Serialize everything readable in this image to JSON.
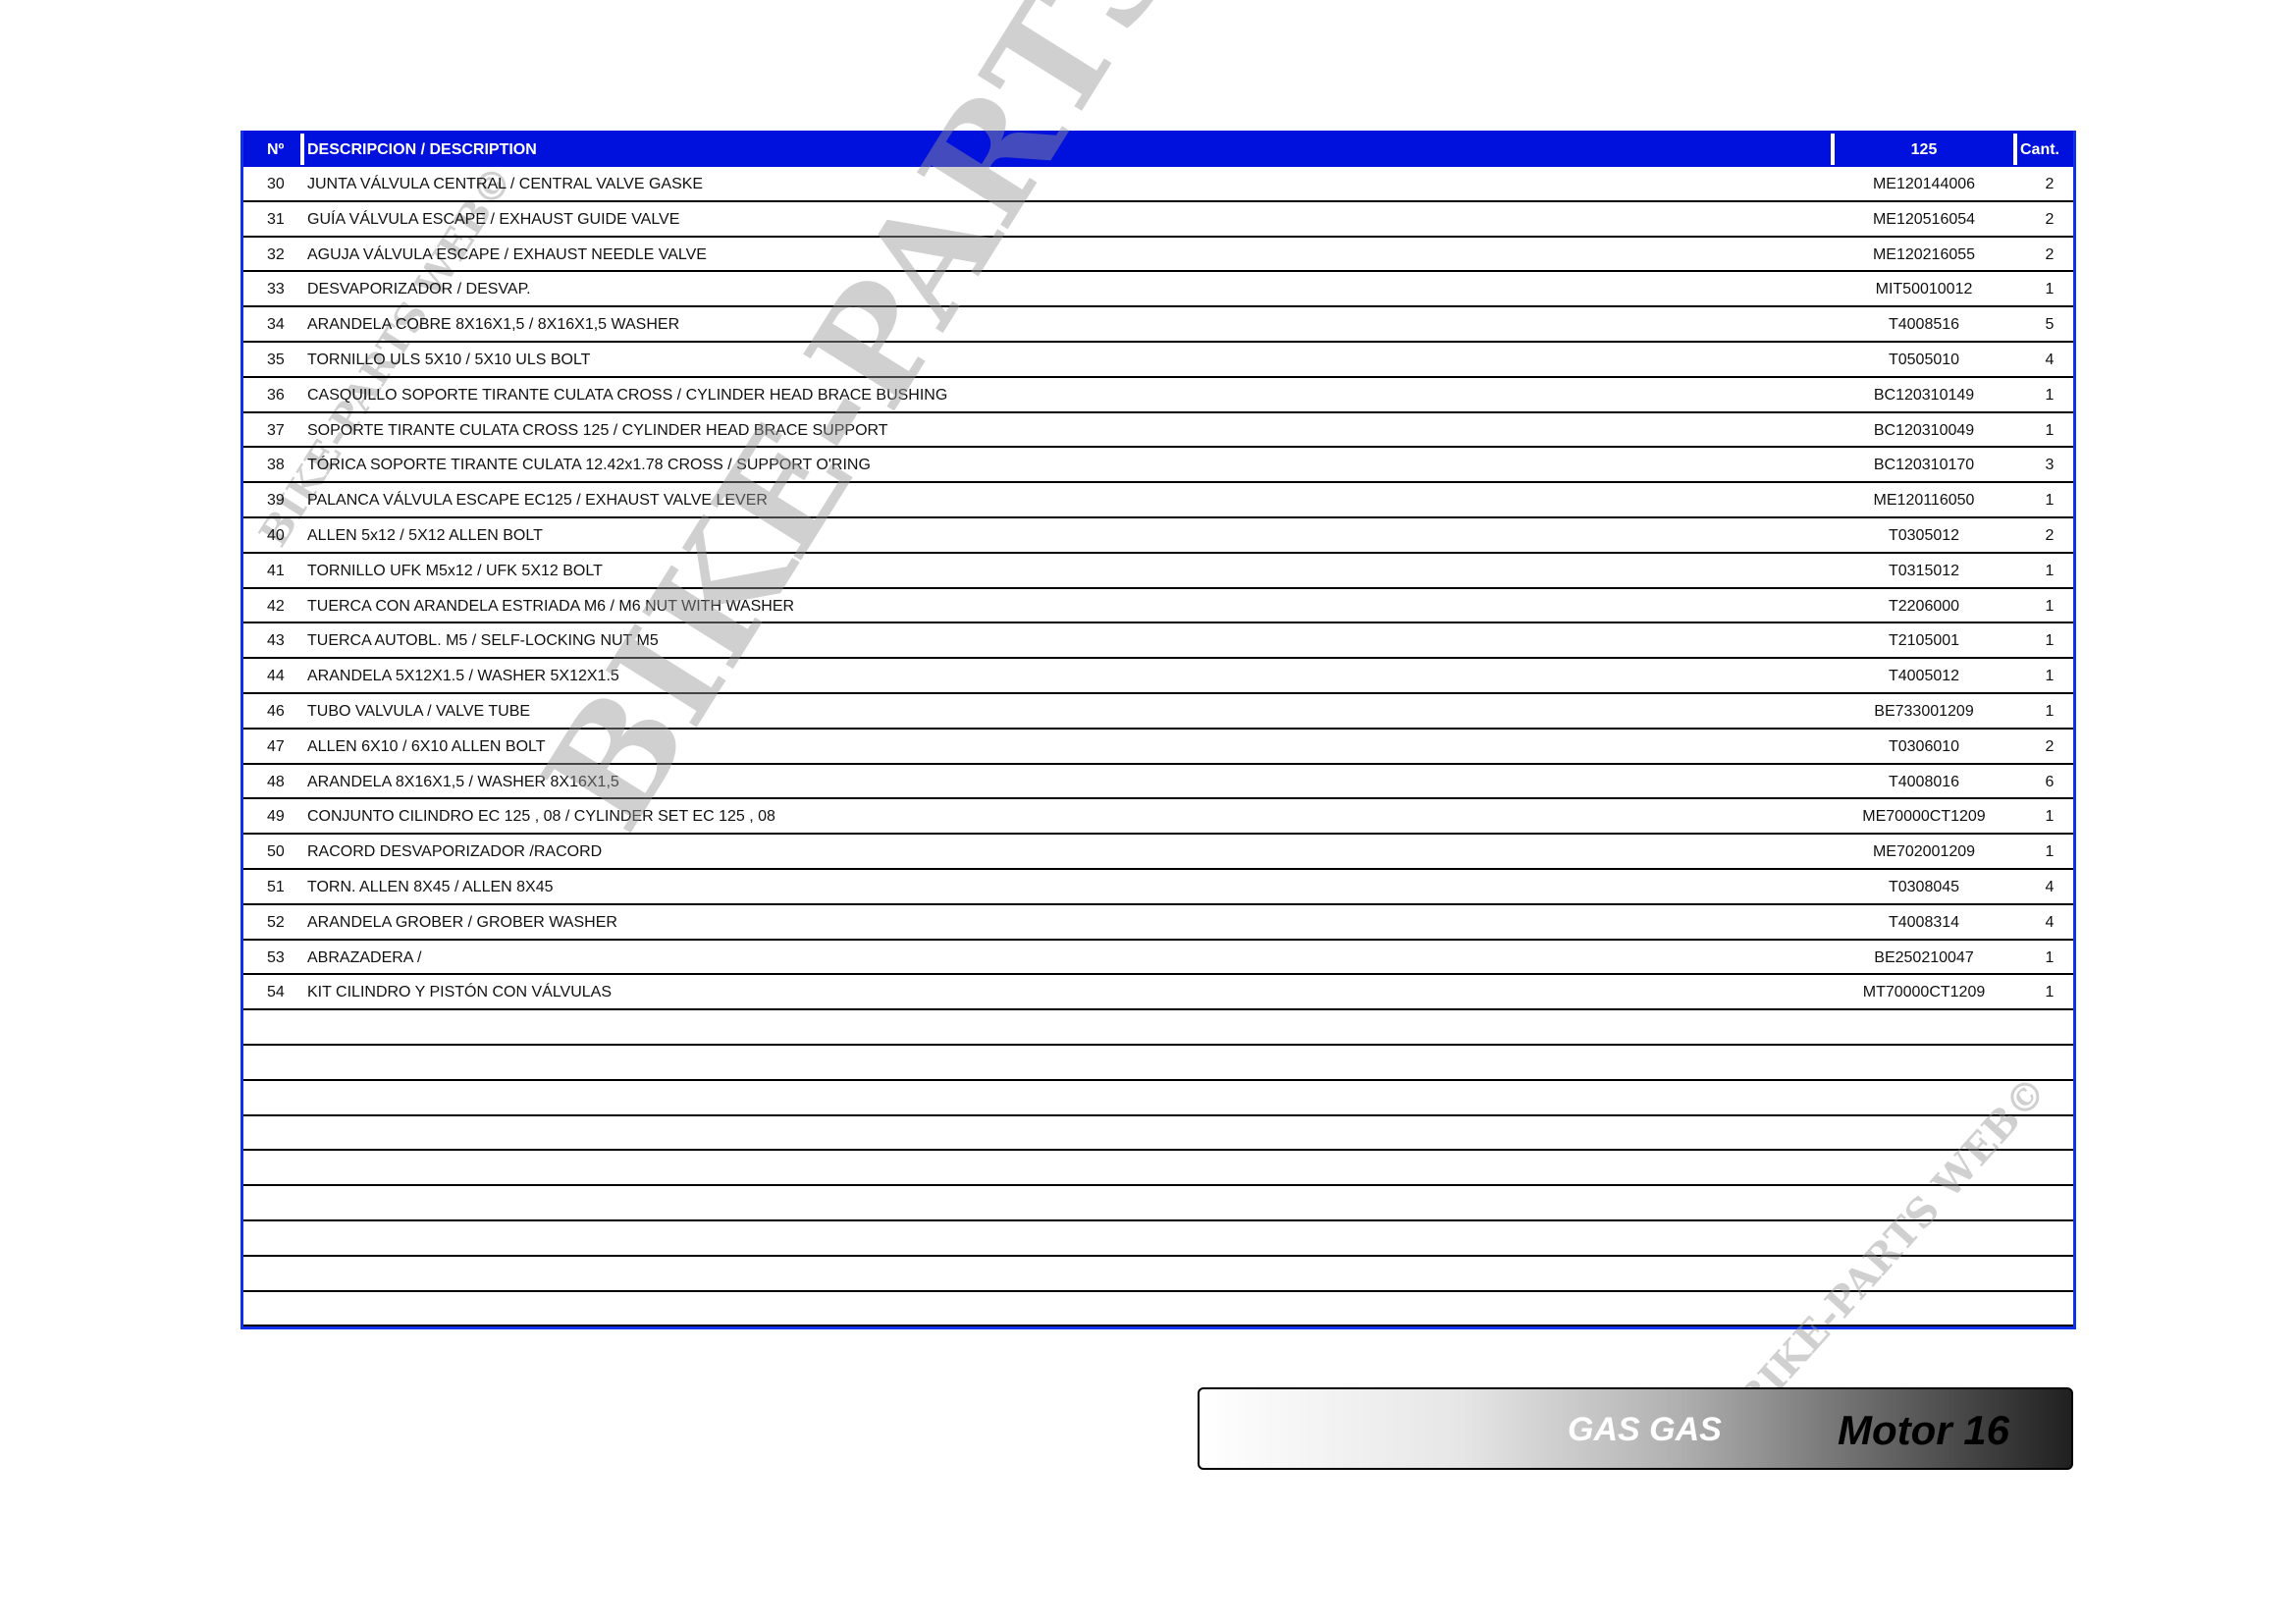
{
  "header": {
    "no": "Nº",
    "description": "DESCRIPCION / DESCRIPTION",
    "model": "125",
    "qty": "Cant."
  },
  "rows": [
    {
      "no": "30",
      "desc": "JUNTA VÁLVULA CENTRAL / CENTRAL VALVE GASKE",
      "code": "ME120144006",
      "qty": "2"
    },
    {
      "no": "31",
      "desc": "GUÍA VÁLVULA ESCAPE / EXHAUST GUIDE VALVE",
      "code": "ME120516054",
      "qty": "2"
    },
    {
      "no": "32",
      "desc": "AGUJA VÁLVULA ESCAPE / EXHAUST NEEDLE VALVE",
      "code": "ME120216055",
      "qty": "2"
    },
    {
      "no": "33",
      "desc": "DESVAPORIZADOR / DESVAP.",
      "code": "MIT50010012",
      "qty": "1"
    },
    {
      "no": "34",
      "desc": "ARANDELA COBRE 8X16X1,5 / 8X16X1,5 WASHER",
      "code": "T4008516",
      "qty": "5"
    },
    {
      "no": "35",
      "desc": "TORNILLO ULS 5X10 / 5X10 ULS BOLT",
      "code": "T0505010",
      "qty": "4"
    },
    {
      "no": "36",
      "desc": "CASQUILLO SOPORTE TIRANTE CULATA CROSS / CYLINDER HEAD BRACE BUSHING",
      "code": "BC120310149",
      "qty": "1"
    },
    {
      "no": "37",
      "desc": "SOPORTE TIRANTE CULATA CROSS 125 / CYLINDER HEAD BRACE SUPPORT",
      "code": "BC120310049",
      "qty": "1"
    },
    {
      "no": "38",
      "desc": "TÓRICA SOPORTE TIRANTE CULATA 12.42x1.78 CROSS / SUPPORT O'RING",
      "code": "BC120310170",
      "qty": "3"
    },
    {
      "no": "39",
      "desc": "PALANCA VÁLVULA ESCAPE EC125 / EXHAUST VALVE LEVER",
      "code": "ME120116050",
      "qty": "1"
    },
    {
      "no": "40",
      "desc": "ALLEN 5x12 / 5X12 ALLEN BOLT",
      "code": "T0305012",
      "qty": "2"
    },
    {
      "no": "41",
      "desc": "TORNILLO UFK M5x12 / UFK 5X12 BOLT",
      "code": "T0315012",
      "qty": "1"
    },
    {
      "no": "42",
      "desc": "TUERCA CON ARANDELA ESTRIADA M6 / M6 NUT WITH WASHER",
      "code": "T2206000",
      "qty": "1"
    },
    {
      "no": "43",
      "desc": "TUERCA AUTOBL. M5 / SELF-LOCKING NUT M5",
      "code": "T2105001",
      "qty": "1"
    },
    {
      "no": "44",
      "desc": "ARANDELA 5X12X1.5 / WASHER 5X12X1.5",
      "code": "T4005012",
      "qty": "1"
    },
    {
      "no": "46",
      "desc": "TUBO VALVULA / VALVE TUBE",
      "code": "BE733001209",
      "qty": "1"
    },
    {
      "no": "47",
      "desc": "ALLEN 6X10 / 6X10 ALLEN BOLT",
      "code": "T0306010",
      "qty": "2"
    },
    {
      "no": "48",
      "desc": "ARANDELA 8X16X1,5 / WASHER 8X16X1,5",
      "code": "T4008016",
      "qty": "6"
    },
    {
      "no": "49",
      "desc": "CONJUNTO CILINDRO EC 125 , 08 / CYLINDER SET EC 125 , 08",
      "code": "ME70000CT1209",
      "qty": "1"
    },
    {
      "no": "50",
      "desc": "RACORD DESVAPORIZADOR /RACORD",
      "code": "ME702001209",
      "qty": "1"
    },
    {
      "no": "51",
      "desc": "TORN. ALLEN 8X45 / ALLEN 8X45",
      "code": "T0308045",
      "qty": "4"
    },
    {
      "no": "52",
      "desc": "ARANDELA GROBER / GROBER WASHER",
      "code": "T4008314",
      "qty": "4"
    },
    {
      "no": "53",
      "desc": "ABRAZADERA /",
      "code": "BE250210047",
      "qty": "1"
    },
    {
      "no": "54",
      "desc": "KIT CILINDRO Y PISTÓN CON VÁLVULAS",
      "code": "MT70000CT1209",
      "qty": "1"
    }
  ],
  "footer": {
    "brand": "GAS GAS",
    "section": "Motor 16"
  },
  "watermark": "BIKE-PARTS WEB©",
  "colors": {
    "header_bg": "#0010dd",
    "border": "#1030f0"
  }
}
